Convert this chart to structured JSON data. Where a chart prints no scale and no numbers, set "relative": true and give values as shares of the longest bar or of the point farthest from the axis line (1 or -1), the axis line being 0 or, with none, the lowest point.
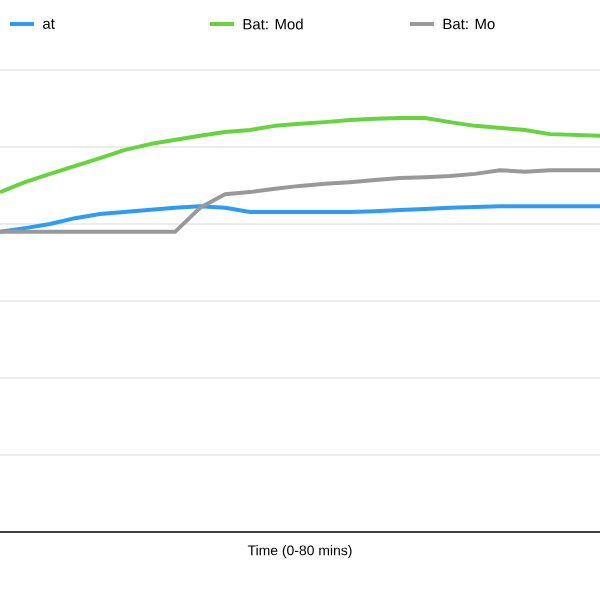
{
  "chart_data": {
    "type": "line",
    "xlabel": "Time (0-80 mins)",
    "relative": true,
    "grid": true,
    "legend": "top",
    "marker": "none",
    "line_style": "solid",
    "categories": [
      null,
      null,
      null,
      null,
      null,
      null,
      null,
      null,
      null,
      null,
      null,
      null,
      null,
      null,
      null,
      null,
      null,
      null,
      null,
      null,
      null,
      null,
      null,
      null,
      null
    ],
    "series": [
      {
        "name": "at",
        "color": "#2e9cf5",
        "values": [
          0.725,
          0.734,
          0.744,
          0.758,
          0.768,
          0.773,
          0.778,
          0.783,
          0.787,
          0.783,
          0.773,
          0.773,
          0.773,
          0.773,
          0.773,
          0.775,
          0.778,
          0.78,
          0.783,
          0.785,
          0.787,
          0.787,
          0.787,
          0.787,
          0.787
        ]
      },
      {
        "name": "Bat: Mod",
        "color": "#66d33f",
        "values": [
          0.821,
          0.845,
          0.865,
          0.884,
          0.903,
          0.923,
          0.937,
          0.947,
          0.957,
          0.966,
          0.971,
          0.981,
          0.986,
          0.99,
          0.995,
          0.998,
          1.0,
          1.0,
          0.99,
          0.981,
          0.976,
          0.971,
          0.961,
          0.959,
          0.957
        ]
      },
      {
        "name": "Bat: Mo",
        "color": "#999999",
        "values": [
          0.725,
          0.725,
          0.725,
          0.725,
          0.725,
          0.725,
          0.725,
          0.725,
          0.783,
          0.816,
          0.821,
          0.829,
          0.836,
          0.841,
          0.845,
          0.85,
          0.855,
          0.857,
          0.86,
          0.865,
          0.874,
          0.87,
          0.874,
          0.874,
          0.874
        ]
      }
    ]
  }
}
